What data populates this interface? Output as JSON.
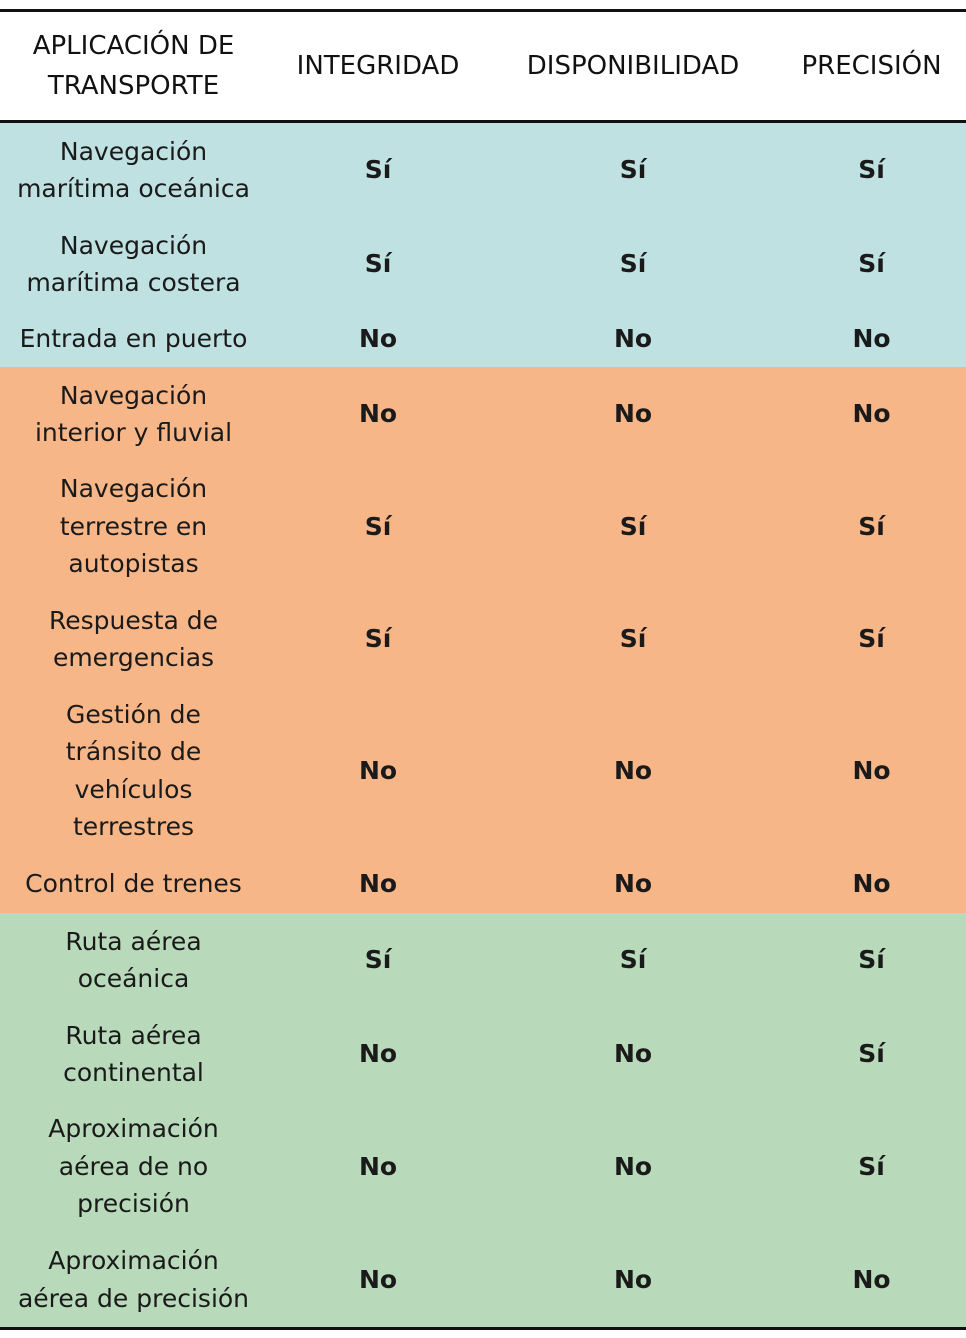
{
  "table": {
    "headers": [
      "APLICACIÓN DE\nTRANSPORTE",
      "INTEGRIDAD",
      "DISPONIBILIDAD",
      "PRECISIÓN"
    ],
    "groups": [
      {
        "color": "#c0e1e2",
        "rows": [
          {
            "app": "Navegación\nmarítima oceánica",
            "integridad": "Sí",
            "disponibilidad": "Sí",
            "precision": "Sí"
          },
          {
            "app": "Navegación\nmarítima costera",
            "integridad": "Sí",
            "disponibilidad": "Sí",
            "precision": "Sí"
          },
          {
            "app": "Entrada en puerto",
            "integridad": "No",
            "disponibilidad": "No",
            "precision": "No"
          }
        ]
      },
      {
        "color": "#f7b688",
        "rows": [
          {
            "app": "Navegación\ninterior y fluvial",
            "integridad": "No",
            "disponibilidad": "No",
            "precision": "No"
          },
          {
            "app": "Navegación\nterrestre en\nautopistas",
            "integridad": "Sí",
            "disponibilidad": "Sí",
            "precision": "Sí"
          },
          {
            "app": "Respuesta de\nemergencias",
            "integridad": "Sí",
            "disponibilidad": "Sí",
            "precision": "Sí"
          },
          {
            "app": "Gestión de\ntránsito de\nvehículos\nterrestres",
            "integridad": "No",
            "disponibilidad": "No",
            "precision": "No"
          },
          {
            "app": "Control de trenes",
            "integridad": "No",
            "disponibilidad": "No",
            "precision": "No"
          }
        ]
      },
      {
        "color": "#b8dabb",
        "rows": [
          {
            "app": "Ruta aérea\noceánica",
            "integridad": "Sí",
            "disponibilidad": "Sí",
            "precision": "Sí"
          },
          {
            "app": "Ruta aérea\ncontinental",
            "integridad": "No",
            "disponibilidad": "No",
            "precision": "Sí"
          },
          {
            "app": "Aproximación\naérea de no\nprecisión",
            "integridad": "No",
            "disponibilidad": "No",
            "precision": "Sí"
          },
          {
            "app": "Aproximación\naérea de precisión",
            "integridad": "No",
            "disponibilidad": "No",
            "precision": "No"
          }
        ]
      }
    ]
  }
}
